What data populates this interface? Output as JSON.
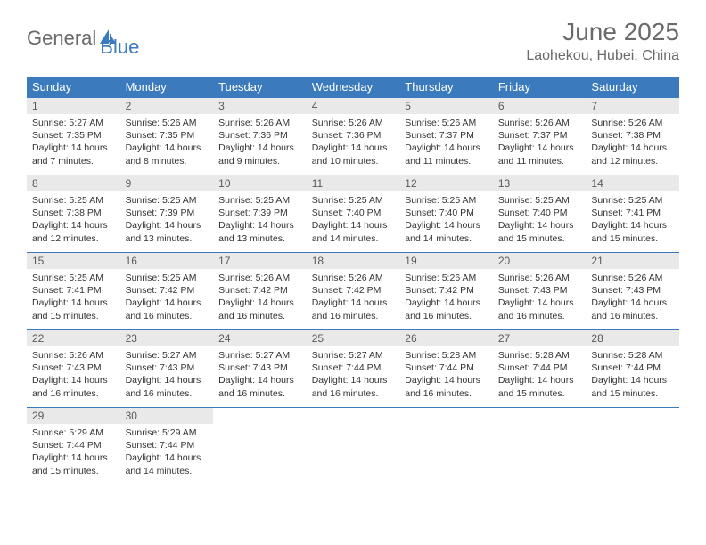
{
  "brand": {
    "text1": "General",
    "text2": "Blue",
    "text1_color": "#6a6a6a",
    "text2_color": "#3a7abd",
    "icon_fill": "#3a7abd"
  },
  "title": "June 2025",
  "location": "Laohekou, Hubei, China",
  "colors": {
    "header_bg": "#3a7abd",
    "header_text": "#ffffff",
    "daynum_bg": "#e9e9e9",
    "daynum_text": "#5a5a5a",
    "body_text": "#333333",
    "border": "#3a7abd"
  },
  "weekdays": [
    "Sunday",
    "Monday",
    "Tuesday",
    "Wednesday",
    "Thursday",
    "Friday",
    "Saturday"
  ],
  "weeks": [
    [
      {
        "n": "1",
        "sr": "5:27 AM",
        "ss": "7:35 PM",
        "dl": "14 hours and 7 minutes."
      },
      {
        "n": "2",
        "sr": "5:26 AM",
        "ss": "7:35 PM",
        "dl": "14 hours and 8 minutes."
      },
      {
        "n": "3",
        "sr": "5:26 AM",
        "ss": "7:36 PM",
        "dl": "14 hours and 9 minutes."
      },
      {
        "n": "4",
        "sr": "5:26 AM",
        "ss": "7:36 PM",
        "dl": "14 hours and 10 minutes."
      },
      {
        "n": "5",
        "sr": "5:26 AM",
        "ss": "7:37 PM",
        "dl": "14 hours and 11 minutes."
      },
      {
        "n": "6",
        "sr": "5:26 AM",
        "ss": "7:37 PM",
        "dl": "14 hours and 11 minutes."
      },
      {
        "n": "7",
        "sr": "5:26 AM",
        "ss": "7:38 PM",
        "dl": "14 hours and 12 minutes."
      }
    ],
    [
      {
        "n": "8",
        "sr": "5:25 AM",
        "ss": "7:38 PM",
        "dl": "14 hours and 12 minutes."
      },
      {
        "n": "9",
        "sr": "5:25 AM",
        "ss": "7:39 PM",
        "dl": "14 hours and 13 minutes."
      },
      {
        "n": "10",
        "sr": "5:25 AM",
        "ss": "7:39 PM",
        "dl": "14 hours and 13 minutes."
      },
      {
        "n": "11",
        "sr": "5:25 AM",
        "ss": "7:40 PM",
        "dl": "14 hours and 14 minutes."
      },
      {
        "n": "12",
        "sr": "5:25 AM",
        "ss": "7:40 PM",
        "dl": "14 hours and 14 minutes."
      },
      {
        "n": "13",
        "sr": "5:25 AM",
        "ss": "7:40 PM",
        "dl": "14 hours and 15 minutes."
      },
      {
        "n": "14",
        "sr": "5:25 AM",
        "ss": "7:41 PM",
        "dl": "14 hours and 15 minutes."
      }
    ],
    [
      {
        "n": "15",
        "sr": "5:25 AM",
        "ss": "7:41 PM",
        "dl": "14 hours and 15 minutes."
      },
      {
        "n": "16",
        "sr": "5:25 AM",
        "ss": "7:42 PM",
        "dl": "14 hours and 16 minutes."
      },
      {
        "n": "17",
        "sr": "5:26 AM",
        "ss": "7:42 PM",
        "dl": "14 hours and 16 minutes."
      },
      {
        "n": "18",
        "sr": "5:26 AM",
        "ss": "7:42 PM",
        "dl": "14 hours and 16 minutes."
      },
      {
        "n": "19",
        "sr": "5:26 AM",
        "ss": "7:42 PM",
        "dl": "14 hours and 16 minutes."
      },
      {
        "n": "20",
        "sr": "5:26 AM",
        "ss": "7:43 PM",
        "dl": "14 hours and 16 minutes."
      },
      {
        "n": "21",
        "sr": "5:26 AM",
        "ss": "7:43 PM",
        "dl": "14 hours and 16 minutes."
      }
    ],
    [
      {
        "n": "22",
        "sr": "5:26 AM",
        "ss": "7:43 PM",
        "dl": "14 hours and 16 minutes."
      },
      {
        "n": "23",
        "sr": "5:27 AM",
        "ss": "7:43 PM",
        "dl": "14 hours and 16 minutes."
      },
      {
        "n": "24",
        "sr": "5:27 AM",
        "ss": "7:43 PM",
        "dl": "14 hours and 16 minutes."
      },
      {
        "n": "25",
        "sr": "5:27 AM",
        "ss": "7:44 PM",
        "dl": "14 hours and 16 minutes."
      },
      {
        "n": "26",
        "sr": "5:28 AM",
        "ss": "7:44 PM",
        "dl": "14 hours and 16 minutes."
      },
      {
        "n": "27",
        "sr": "5:28 AM",
        "ss": "7:44 PM",
        "dl": "14 hours and 15 minutes."
      },
      {
        "n": "28",
        "sr": "5:28 AM",
        "ss": "7:44 PM",
        "dl": "14 hours and 15 minutes."
      }
    ],
    [
      {
        "n": "29",
        "sr": "5:29 AM",
        "ss": "7:44 PM",
        "dl": "14 hours and 15 minutes."
      },
      {
        "n": "30",
        "sr": "5:29 AM",
        "ss": "7:44 PM",
        "dl": "14 hours and 14 minutes."
      },
      null,
      null,
      null,
      null,
      null
    ]
  ],
  "labels": {
    "sunrise": "Sunrise: ",
    "sunset": "Sunset: ",
    "daylight": "Daylight: "
  }
}
